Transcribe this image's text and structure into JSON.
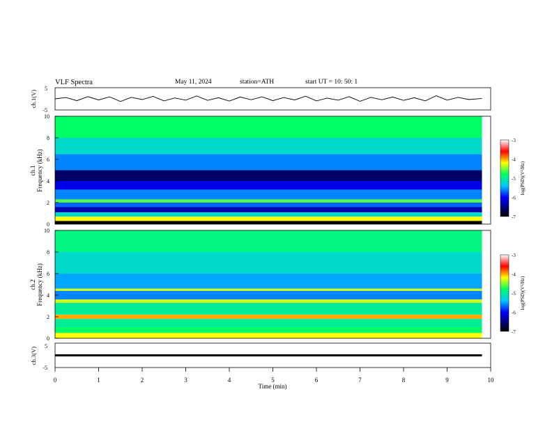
{
  "header": {
    "title": "VLF  Spectra",
    "date": "May 11, 2024",
    "station": "station=ATH",
    "start": "start  UT  =    10: 50: 1"
  },
  "chart_data": [
    {
      "type": "line",
      "id": "ch1_waveform",
      "ylabel": "ch.1(V)",
      "ylim": [
        -5,
        5
      ],
      "yticks": [
        "5",
        "-5"
      ],
      "xlim": [
        0,
        10
      ],
      "x": [
        0.0,
        0.25,
        0.5,
        0.75,
        1.0,
        1.25,
        1.5,
        1.75,
        2.0,
        2.25,
        2.5,
        2.75,
        3.0,
        3.25,
        3.5,
        3.75,
        4.0,
        4.25,
        4.5,
        4.75,
        5.0,
        5.25,
        5.5,
        5.75,
        6.0,
        6.25,
        6.5,
        6.75,
        7.0,
        7.25,
        7.5,
        7.75,
        8.0,
        8.25,
        8.5,
        8.75,
        9.0,
        9.25,
        9.5,
        9.8
      ],
      "values": [
        0.0,
        0.6,
        -0.8,
        1.0,
        -0.5,
        0.9,
        -1.2,
        0.7,
        -0.3,
        1.1,
        -0.9,
        0.4,
        -0.6,
        1.3,
        -0.7,
        0.5,
        -1.0,
        0.8,
        -0.4,
        0.9,
        -0.8,
        0.6,
        -0.5,
        1.2,
        -0.9,
        0.3,
        -0.6,
        1.0,
        -1.1,
        0.7,
        -0.4,
        0.8,
        -0.7,
        0.5,
        -0.9,
        1.4,
        -0.6,
        0.7,
        -0.3,
        0.2
      ]
    },
    {
      "type": "heatmap",
      "id": "ch1_spectrogram",
      "ylabel": "ch.1\nFrequency (kHz)",
      "ylim": [
        0,
        10
      ],
      "yticks": [
        "0",
        "2",
        "4",
        "6",
        "8",
        "10"
      ],
      "xlim": [
        0,
        10
      ],
      "colorbar": {
        "label": "log(PSD)(V²/Hz)",
        "range": [
          -7,
          -3
        ],
        "ticks": [
          "-3",
          "-4",
          "-5",
          "-6",
          "-7"
        ]
      },
      "bands_khz": [
        {
          "from": 0.0,
          "to": 0.3,
          "level": -7.0
        },
        {
          "from": 0.3,
          "to": 0.7,
          "level": -4.2
        },
        {
          "from": 0.7,
          "to": 1.1,
          "level": -5.2
        },
        {
          "from": 1.1,
          "to": 1.6,
          "level": -6.3
        },
        {
          "from": 1.6,
          "to": 2.0,
          "level": -5.7
        },
        {
          "from": 2.0,
          "to": 2.3,
          "level": -4.6
        },
        {
          "from": 2.3,
          "to": 3.2,
          "level": -5.6
        },
        {
          "from": 3.2,
          "to": 4.0,
          "level": -6.1
        },
        {
          "from": 4.0,
          "to": 5.0,
          "level": -6.6
        },
        {
          "from": 5.0,
          "to": 6.5,
          "level": -5.6
        },
        {
          "from": 6.5,
          "to": 8.0,
          "level": -5.2
        },
        {
          "from": 8.0,
          "to": 10.0,
          "level": -4.8
        }
      ]
    },
    {
      "type": "heatmap",
      "id": "ch2_spectrogram",
      "ylabel": "ch.2\nFrequency (kHz)",
      "ylim": [
        0,
        10
      ],
      "yticks": [
        "0",
        "2",
        "4",
        "6",
        "8",
        "10"
      ],
      "xlim": [
        0,
        10
      ],
      "colorbar": {
        "label": "log(PSD)(V²/Hz)",
        "range": [
          -7,
          -3
        ],
        "ticks": [
          "-3",
          "-4",
          "-5",
          "-6",
          "-7"
        ]
      },
      "bands_khz": [
        {
          "from": 0.0,
          "to": 0.5,
          "level": -4.2
        },
        {
          "from": 0.5,
          "to": 1.0,
          "level": -4.8
        },
        {
          "from": 1.0,
          "to": 1.8,
          "level": -5.0
        },
        {
          "from": 1.8,
          "to": 2.2,
          "level": -4.0
        },
        {
          "from": 2.2,
          "to": 3.3,
          "level": -5.0
        },
        {
          "from": 3.3,
          "to": 3.6,
          "level": -4.3
        },
        {
          "from": 3.6,
          "to": 4.4,
          "level": -5.6
        },
        {
          "from": 4.4,
          "to": 4.6,
          "level": -4.3
        },
        {
          "from": 4.6,
          "to": 6.0,
          "level": -5.5
        },
        {
          "from": 6.0,
          "to": 8.0,
          "level": -5.2
        },
        {
          "from": 8.0,
          "to": 10.0,
          "level": -4.9
        }
      ]
    },
    {
      "type": "line",
      "id": "ch3_waveform",
      "ylabel": "ch.3(V)",
      "ylim": [
        -5,
        5
      ],
      "yticks": [
        "5",
        "-5"
      ],
      "xlim": [
        0,
        10
      ],
      "x": [
        0.0,
        9.8
      ],
      "values": [
        0.0,
        0.0
      ],
      "xlabel": "Time  (min)",
      "xticks": [
        "0",
        "1",
        "2",
        "3",
        "4",
        "5",
        "6",
        "7",
        "8",
        "9",
        "10"
      ]
    }
  ]
}
